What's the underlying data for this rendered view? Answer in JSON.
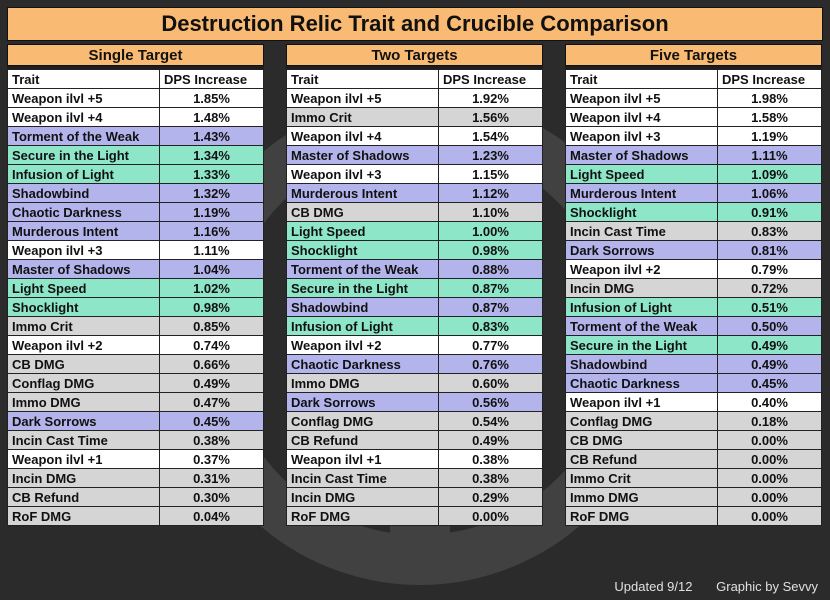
{
  "title": "Destruction Relic Trait and Crucible Comparison",
  "colors": {
    "white": "#ffffff",
    "gray": "#d5d5d5",
    "purple": "#b4b4ec",
    "teal": "#8ee6c8",
    "header_orange": "#f9bb73"
  },
  "column_headers": {
    "trait": "Trait",
    "dps": "DPS Increase"
  },
  "panels": [
    {
      "heading": "Single Target",
      "rows": [
        {
          "trait": "Weapon ilvl +5",
          "dps": "1.85%",
          "color": "white"
        },
        {
          "trait": "Weapon ilvl +4",
          "dps": "1.48%",
          "color": "white"
        },
        {
          "trait": "Torment of the Weak",
          "dps": "1.43%",
          "color": "purple"
        },
        {
          "trait": "Secure in the Light",
          "dps": "1.34%",
          "color": "teal"
        },
        {
          "trait": "Infusion of Light",
          "dps": "1.33%",
          "color": "teal"
        },
        {
          "trait": "Shadowbind",
          "dps": "1.32%",
          "color": "purple"
        },
        {
          "trait": "Chaotic Darkness",
          "dps": "1.19%",
          "color": "purple"
        },
        {
          "trait": "Murderous Intent",
          "dps": "1.16%",
          "color": "purple"
        },
        {
          "trait": "Weapon ilvl +3",
          "dps": "1.11%",
          "color": "white"
        },
        {
          "trait": "Master of Shadows",
          "dps": "1.04%",
          "color": "purple"
        },
        {
          "trait": "Light Speed",
          "dps": "1.02%",
          "color": "teal"
        },
        {
          "trait": "Shocklight",
          "dps": "0.98%",
          "color": "teal"
        },
        {
          "trait": "Immo Crit",
          "dps": "0.85%",
          "color": "gray"
        },
        {
          "trait": "Weapon ilvl +2",
          "dps": "0.74%",
          "color": "white"
        },
        {
          "trait": "CB DMG",
          "dps": "0.66%",
          "color": "gray"
        },
        {
          "trait": "Conflag DMG",
          "dps": "0.49%",
          "color": "gray"
        },
        {
          "trait": "Immo DMG",
          "dps": "0.47%",
          "color": "gray"
        },
        {
          "trait": "Dark Sorrows",
          "dps": "0.45%",
          "color": "purple"
        },
        {
          "trait": "Incin Cast Time",
          "dps": "0.38%",
          "color": "gray"
        },
        {
          "trait": "Weapon ilvl +1",
          "dps": "0.37%",
          "color": "white"
        },
        {
          "trait": "Incin DMG",
          "dps": "0.31%",
          "color": "gray"
        },
        {
          "trait": "CB Refund",
          "dps": "0.30%",
          "color": "gray"
        },
        {
          "trait": "RoF DMG",
          "dps": "0.04%",
          "color": "gray"
        }
      ]
    },
    {
      "heading": "Two Targets",
      "rows": [
        {
          "trait": "Weapon ilvl +5",
          "dps": "1.92%",
          "color": "white"
        },
        {
          "trait": "Immo Crit",
          "dps": "1.56%",
          "color": "gray"
        },
        {
          "trait": "Weapon ilvl +4",
          "dps": "1.54%",
          "color": "white"
        },
        {
          "trait": "Master of Shadows",
          "dps": "1.23%",
          "color": "purple"
        },
        {
          "trait": "Weapon ilvl +3",
          "dps": "1.15%",
          "color": "white"
        },
        {
          "trait": "Murderous Intent",
          "dps": "1.12%",
          "color": "purple"
        },
        {
          "trait": "CB DMG",
          "dps": "1.10%",
          "color": "gray"
        },
        {
          "trait": "Light Speed",
          "dps": "1.00%",
          "color": "teal"
        },
        {
          "trait": "Shocklight",
          "dps": "0.98%",
          "color": "teal"
        },
        {
          "trait": "Torment of the Weak",
          "dps": "0.88%",
          "color": "purple"
        },
        {
          "trait": "Secure in the Light",
          "dps": "0.87%",
          "color": "teal"
        },
        {
          "trait": "Shadowbind",
          "dps": "0.87%",
          "color": "purple"
        },
        {
          "trait": "Infusion of Light",
          "dps": "0.83%",
          "color": "teal"
        },
        {
          "trait": "Weapon ilvl +2",
          "dps": "0.77%",
          "color": "white"
        },
        {
          "trait": "Chaotic Darkness",
          "dps": "0.76%",
          "color": "purple"
        },
        {
          "trait": "Immo DMG",
          "dps": "0.60%",
          "color": "gray"
        },
        {
          "trait": "Dark Sorrows",
          "dps": "0.56%",
          "color": "purple"
        },
        {
          "trait": "Conflag DMG",
          "dps": "0.54%",
          "color": "gray"
        },
        {
          "trait": "CB Refund",
          "dps": "0.49%",
          "color": "gray"
        },
        {
          "trait": "Weapon ilvl +1",
          "dps": "0.38%",
          "color": "white"
        },
        {
          "trait": "Incin Cast Time",
          "dps": "0.38%",
          "color": "gray"
        },
        {
          "trait": "Incin DMG",
          "dps": "0.29%",
          "color": "gray"
        },
        {
          "trait": "RoF DMG",
          "dps": "0.00%",
          "color": "gray"
        }
      ]
    },
    {
      "heading": "Five Targets",
      "rows": [
        {
          "trait": "Weapon ilvl +5",
          "dps": "1.98%",
          "color": "white"
        },
        {
          "trait": "Weapon ilvl +4",
          "dps": "1.58%",
          "color": "white"
        },
        {
          "trait": "Weapon ilvl +3",
          "dps": "1.19%",
          "color": "white"
        },
        {
          "trait": "Master of Shadows",
          "dps": "1.11%",
          "color": "purple"
        },
        {
          "trait": "Light Speed",
          "dps": "1.09%",
          "color": "teal"
        },
        {
          "trait": "Murderous Intent",
          "dps": "1.06%",
          "color": "purple"
        },
        {
          "trait": "Shocklight",
          "dps": "0.91%",
          "color": "teal"
        },
        {
          "trait": "Incin Cast Time",
          "dps": "0.83%",
          "color": "gray"
        },
        {
          "trait": "Dark Sorrows",
          "dps": "0.81%",
          "color": "purple"
        },
        {
          "trait": "Weapon ilvl +2",
          "dps": "0.79%",
          "color": "white"
        },
        {
          "trait": "Incin DMG",
          "dps": "0.72%",
          "color": "gray"
        },
        {
          "trait": "Infusion of Light",
          "dps": "0.51%",
          "color": "teal"
        },
        {
          "trait": "Torment of the Weak",
          "dps": "0.50%",
          "color": "purple"
        },
        {
          "trait": "Secure in the Light",
          "dps": "0.49%",
          "color": "teal"
        },
        {
          "trait": "Shadowbind",
          "dps": "0.49%",
          "color": "purple"
        },
        {
          "trait": "Chaotic Darkness",
          "dps": "0.45%",
          "color": "purple"
        },
        {
          "trait": "Weapon ilvl +1",
          "dps": "0.40%",
          "color": "white"
        },
        {
          "trait": "Conflag DMG",
          "dps": "0.18%",
          "color": "gray"
        },
        {
          "trait": "CB DMG",
          "dps": "0.00%",
          "color": "gray"
        },
        {
          "trait": "CB Refund",
          "dps": "0.00%",
          "color": "gray"
        },
        {
          "trait": "Immo Crit",
          "dps": "0.00%",
          "color": "gray"
        },
        {
          "trait": "Immo DMG",
          "dps": "0.00%",
          "color": "gray"
        },
        {
          "trait": "RoF DMG",
          "dps": "0.00%",
          "color": "gray"
        }
      ]
    }
  ],
  "footer": {
    "updated": "Updated 9/12",
    "credit": "Graphic by Sevvy"
  },
  "watermark_icon": "guild-logo-watermark"
}
